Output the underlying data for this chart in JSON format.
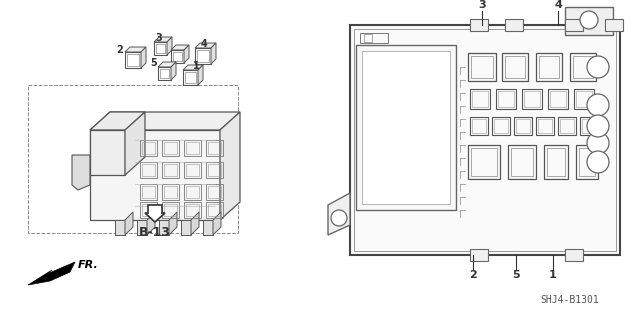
{
  "bg_color": "#ffffff",
  "lc": "#555555",
  "dark": "#333333",
  "part_number": "SHJ4-B1301",
  "ref_label": "B-13",
  "direction_label": "FR."
}
